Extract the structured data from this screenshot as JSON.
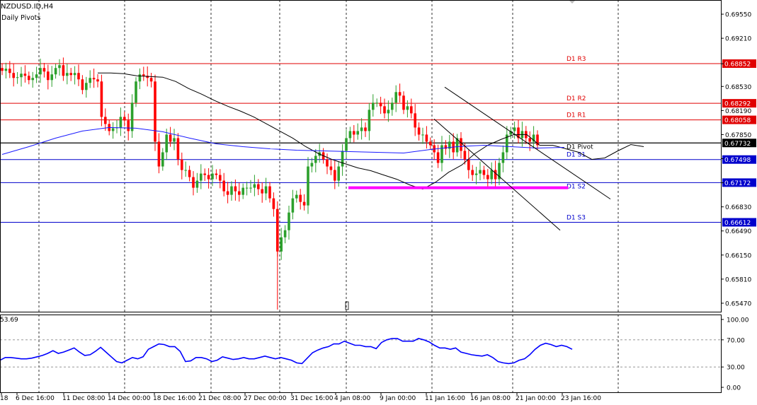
{
  "header": {
    "symbol": "NZDUSD.ID,H4",
    "indicator_label": "Daily Pivots"
  },
  "rsi": {
    "value_label": "53.69",
    "axis_labels": [
      "100.00",
      "70.00",
      "30.00",
      "0.00"
    ]
  },
  "colors": {
    "bull": "#2ca02c",
    "bear": "#ff0000",
    "resistance": "#e00000",
    "support": "#0000cc",
    "pivot": "#000000",
    "ma_fast": "#000000",
    "ma_slow": "#1a1aff",
    "rsi_line": "#0000ff",
    "support_zone": "#ff00ff",
    "channel": "#000000"
  },
  "chart_data": [
    {
      "type": "candlestick",
      "title": "NZDUSD.ID,H4",
      "ylim": [
        0.6535,
        0.6975
      ],
      "y_ticks": [
        0.6955,
        0.6921,
        0.6885,
        0.6853,
        0.6819,
        0.6785,
        0.6751,
        0.6717,
        0.6683,
        0.6649,
        0.6615,
        0.6581,
        0.6547
      ],
      "y_tick_labels": [
        "0.69550",
        "0.69210",
        "0.68852",
        "0.68530",
        "0.68292",
        "0.68190",
        "0.68058",
        "0.67850",
        "0.67732",
        "0.67498",
        "0.67172",
        "0.66830",
        "0.66612",
        "0.66490",
        "0.66150",
        "0.65810",
        "0.65470"
      ],
      "x_labels": [
        "18",
        "6 Dec 16:00",
        "11 Dec 08:00",
        "14 Dec 00:00",
        "18 Dec 16:00",
        "21 Dec 08:00",
        "27 Dec 00:00",
        "31 Dec 16:00",
        "4 Jan 08:00",
        "9 Jan 00:00",
        "11 Jan 16:00",
        "16 Jan 08:00",
        "21 Jan 00:00",
        "23 Jan 16:00"
      ],
      "levels": [
        {
          "name": "D1 R3",
          "value": 0.68852,
          "label": "0.68852",
          "kind": "resistance"
        },
        {
          "name": "D1 R2",
          "value": 0.68292,
          "label": "0.68292",
          "kind": "resistance"
        },
        {
          "name": "D1 R1",
          "value": 0.68058,
          "label": "0.68058",
          "kind": "resistance"
        },
        {
          "name": "D1 Pivot",
          "value": 0.67732,
          "label": "0.67732",
          "kind": "pivot"
        },
        {
          "name": "D1 S1",
          "value": 0.67498,
          "label": "0.67498",
          "kind": "support"
        },
        {
          "name": "D1 S2",
          "value": 0.67172,
          "label": "0.67172",
          "kind": "support"
        },
        {
          "name": "D1 S3",
          "value": 0.66612,
          "label": "0.66612",
          "kind": "support"
        }
      ],
      "support_zone": {
        "value": 0.671,
        "from_bar": 85,
        "to_bar": 131
      },
      "channel": {
        "upper": {
          "bar0": 103,
          "y0": 0.6852,
          "bar1": 142,
          "y1": 0.6694
        },
        "lower": {
          "bar0": 102,
          "y0": 0.6807,
          "bar1": 130,
          "y1": 0.665
        }
      },
      "series": [
        {
          "name": "close",
          "values": [
            0.6875,
            0.6878,
            0.6872,
            0.6865,
            0.6866,
            0.6871,
            0.6868,
            0.6862,
            0.6865,
            0.687,
            0.6879,
            0.6874,
            0.6862,
            0.687,
            0.6879,
            0.6883,
            0.6868,
            0.6872,
            0.6869,
            0.6872,
            0.6863,
            0.6848,
            0.6858,
            0.6865,
            0.6863,
            0.686,
            0.681,
            0.68,
            0.679,
            0.6794,
            0.6795,
            0.681,
            0.6805,
            0.679,
            0.683,
            0.686,
            0.687,
            0.6868,
            0.6865,
            0.686,
            0.6775,
            0.674,
            0.676,
            0.6785,
            0.6775,
            0.678,
            0.675,
            0.6735,
            0.6735,
            0.6725,
            0.671,
            0.672,
            0.673,
            0.6728,
            0.6722,
            0.673,
            0.6728,
            0.672,
            0.6705,
            0.67,
            0.6712,
            0.6705,
            0.67,
            0.671,
            0.671,
            0.671,
            0.6715,
            0.6708,
            0.6702,
            0.6712,
            0.6695,
            0.668,
            0.662,
            0.664,
            0.665,
            0.6675,
            0.6695,
            0.67,
            0.669,
            0.6685,
            0.674,
            0.6745,
            0.6755,
            0.676,
            0.675,
            0.674,
            0.6735,
            0.672,
            0.674,
            0.6762,
            0.678,
            0.679,
            0.6785,
            0.679,
            0.6795,
            0.679,
            0.682,
            0.683,
            0.683,
            0.6825,
            0.6815,
            0.682,
            0.683,
            0.6845,
            0.684,
            0.682,
            0.6825,
            0.6815,
            0.6795,
            0.6785,
            0.6785,
            0.6775,
            0.677,
            0.676,
            0.6745,
            0.677,
            0.6765,
            0.6775,
            0.676,
            0.678,
            0.6762,
            0.675,
            0.6735,
            0.6728,
            0.673,
            0.6735,
            0.6728,
            0.6722,
            0.6735,
            0.6722,
            0.6745,
            0.676,
            0.6785,
            0.679,
            0.6795,
            0.678,
            0.679,
            0.678,
            0.6775,
            0.6785,
            0.677
          ]
        },
        {
          "name": "MA fast",
          "values": [
            0.6872,
            0.6872,
            0.6871,
            0.6868,
            0.6867,
            0.6866,
            0.686,
            0.685,
            0.6842,
            0.6833,
            0.6825,
            0.6818,
            0.681,
            0.68,
            0.679,
            0.678,
            0.6768,
            0.6758,
            0.675,
            0.6744,
            0.6738,
            0.6734,
            0.6728,
            0.6722,
            0.6714,
            0.6708,
            0.6718,
            0.6732,
            0.6742,
            0.6758,
            0.677,
            0.6778,
            0.6785,
            0.6785,
            0.677,
            0.677,
            0.6765,
            0.676,
            0.675,
            0.6752,
            0.6762,
            0.6771,
            0.6768
          ]
        },
        {
          "name": "MA slow",
          "values": [
            0.6757,
            0.6768,
            0.678,
            0.679,
            0.6795,
            0.6794,
            0.6789,
            0.678,
            0.6772,
            0.6768,
            0.6765,
            0.6763,
            0.6762,
            0.6761,
            0.676,
            0.6759,
            0.6764,
            0.6768,
            0.677,
            0.6768,
            0.6766,
            0.6767
          ]
        }
      ]
    },
    {
      "type": "line",
      "title": "",
      "ylim": [
        0,
        100
      ],
      "y_ticks": [
        100,
        70,
        30,
        0
      ],
      "series": [
        {
          "name": "",
          "values": [
            40,
            44,
            44,
            43,
            42,
            42,
            43,
            45,
            47,
            50,
            54,
            50,
            52,
            55,
            58,
            52,
            47,
            48,
            53,
            59,
            52,
            45,
            38,
            36,
            40,
            44,
            42,
            45,
            56,
            60,
            64,
            63,
            60,
            60,
            53,
            38,
            39,
            44,
            44,
            42,
            38,
            40,
            45,
            43,
            41,
            42,
            44,
            42,
            42,
            44,
            46,
            44,
            42,
            44,
            42,
            40,
            36,
            35,
            43,
            51,
            55,
            58,
            60,
            64,
            64,
            68,
            65,
            62,
            62,
            60,
            60,
            57,
            66,
            70,
            72,
            72,
            68,
            68,
            68,
            72,
            70,
            67,
            62,
            58,
            58,
            56,
            58,
            52,
            50,
            48,
            47,
            46,
            48,
            44,
            38,
            36,
            35,
            36,
            40,
            42,
            48,
            56,
            62,
            65,
            63,
            60,
            62,
            60,
            56
          ]
        }
      ]
    }
  ]
}
